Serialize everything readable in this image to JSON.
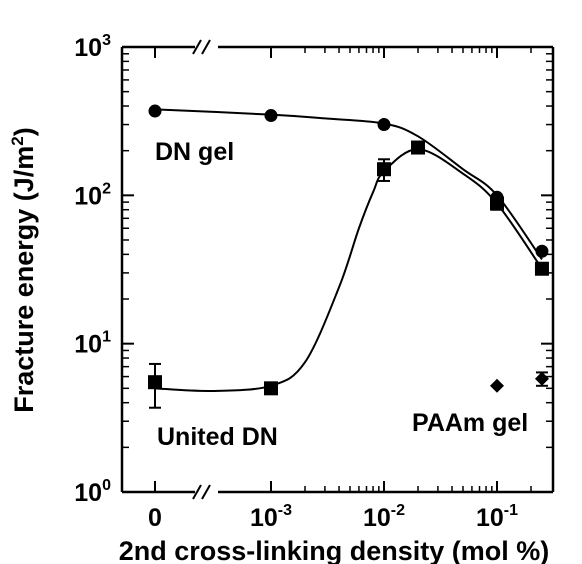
{
  "chart_data": {
    "type": "scatter",
    "title": "",
    "xlabel": "2nd cross-linking density (mol %)",
    "ylabel_main": "Fracture energy (J/m",
    "ylabel_sup": "2",
    "ylabel_close": ")",
    "xscale": "log (broken axis)",
    "yscale": "log",
    "ylim": [
      1,
      1000
    ],
    "grid": false,
    "legend": "none",
    "x_ticks": [
      {
        "base": "0",
        "exp": ""
      },
      {
        "base": "10",
        "exp": "-3"
      },
      {
        "base": "10",
        "exp": "-2"
      },
      {
        "base": "10",
        "exp": "-1"
      }
    ],
    "y_ticks": [
      {
        "base": "10",
        "exp": "0"
      },
      {
        "base": "10",
        "exp": "1"
      },
      {
        "base": "10",
        "exp": "2"
      },
      {
        "base": "10",
        "exp": "3"
      }
    ],
    "axis_break": "//",
    "series": [
      {
        "name": "DN gel",
        "marker": "circle",
        "x": [
          0,
          0.001,
          0.01,
          0.1,
          0.25
        ],
        "y": [
          370,
          345,
          300,
          97,
          42
        ],
        "err_low": [
          0,
          0,
          0,
          0,
          0
        ],
        "err_high": [
          0,
          0,
          0,
          0,
          0
        ]
      },
      {
        "name": "United DN",
        "marker": "square",
        "x": [
          0,
          0.001,
          0.01,
          0.02,
          0.1,
          0.25
        ],
        "y": [
          5.5,
          5.0,
          150,
          210,
          88,
          32
        ],
        "err_low": [
          1.8,
          0.3,
          25,
          15,
          8,
          2
        ],
        "err_high": [
          1.8,
          0.3,
          25,
          15,
          8,
          2
        ]
      },
      {
        "name": "PAAm gel",
        "marker": "diamond",
        "x": [
          0.1,
          0.25
        ],
        "y": [
          5.2,
          5.8
        ],
        "err_low": [
          0,
          0.6
        ],
        "err_high": [
          0,
          0.6
        ]
      }
    ],
    "curves": [
      {
        "name": "DN gel",
        "x": [
          0,
          0.001,
          0.003,
          0.01,
          0.02,
          0.05,
          0.1,
          0.25
        ],
        "y": [
          380,
          350,
          330,
          305,
          250,
          150,
          100,
          37
        ]
      },
      {
        "name": "United DN",
        "x": [
          0,
          0.0003,
          0.001,
          0.002,
          0.004,
          0.006,
          0.008,
          0.01,
          0.02,
          0.05,
          0.1,
          0.25
        ],
        "y": [
          5.0,
          4.8,
          5.2,
          7.5,
          24,
          60,
          105,
          145,
          205,
          140,
          88,
          32
        ]
      }
    ]
  }
}
